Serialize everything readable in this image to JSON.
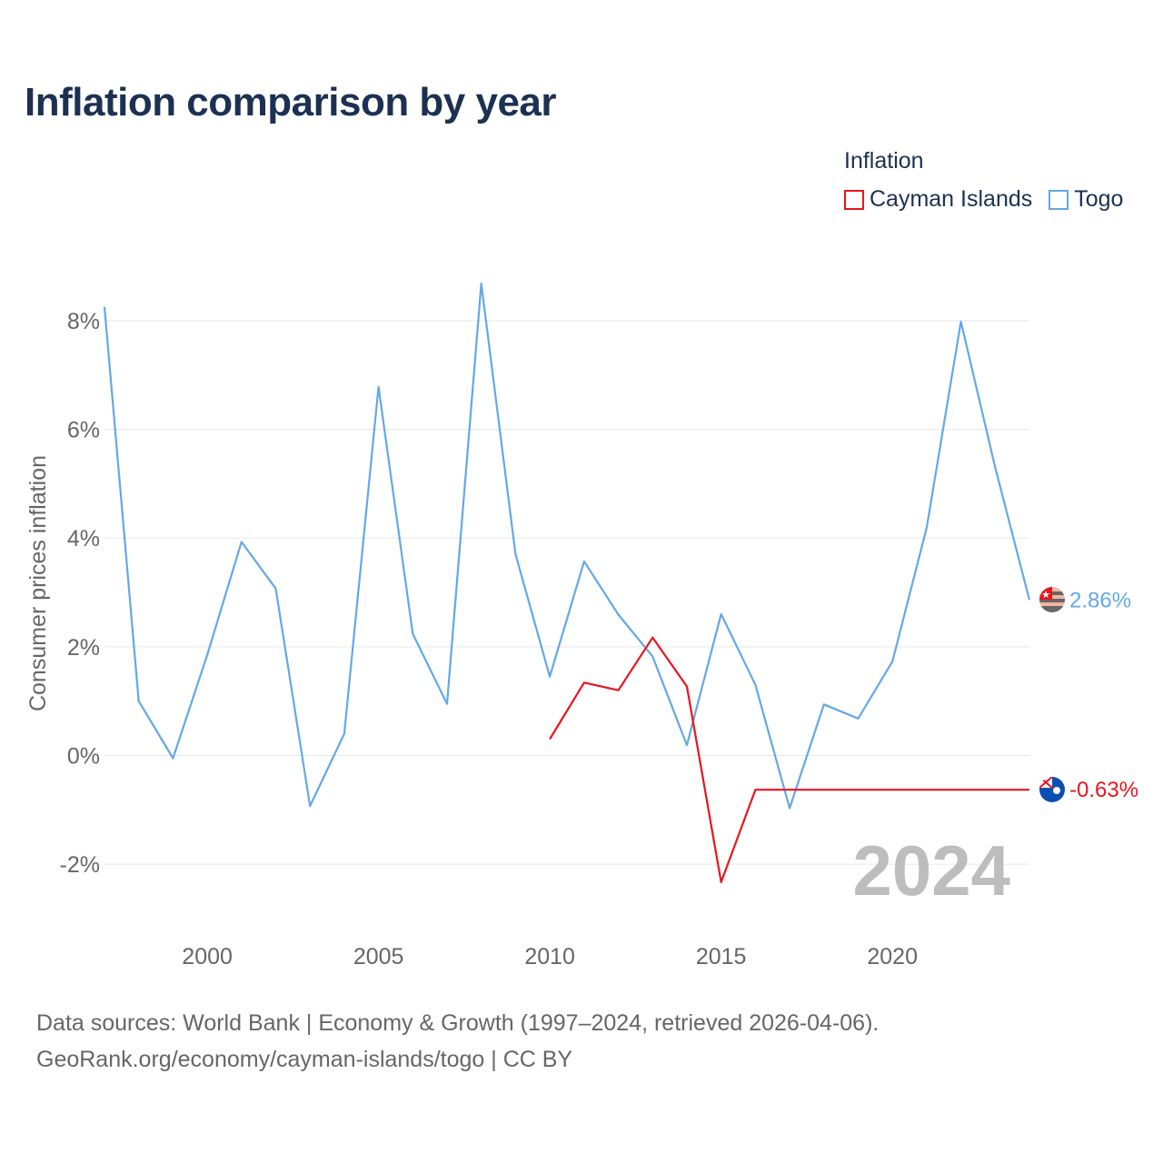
{
  "title": "Inflation comparison by year",
  "legend": {
    "title": "Inflation",
    "items": [
      {
        "label": "Cayman Islands",
        "color": "#e8141e"
      },
      {
        "label": "Togo",
        "color": "#64a8e6"
      }
    ]
  },
  "chart_data": {
    "type": "line",
    "title": "Inflation comparison by year",
    "xlabel": "",
    "ylabel": "Consumer prices inflation",
    "xlim": [
      1997,
      2024
    ],
    "ylim": [
      -3,
      9
    ],
    "x_ticks": [
      2000,
      2005,
      2010,
      2015,
      2020
    ],
    "y_ticks": [
      {
        "value": -2,
        "label": "-2%"
      },
      {
        "value": 0,
        "label": "0%"
      },
      {
        "value": 2,
        "label": "2%"
      },
      {
        "value": 4,
        "label": "4%"
      },
      {
        "value": 6,
        "label": "6%"
      },
      {
        "value": 8,
        "label": "8%"
      }
    ],
    "grid": true,
    "year_watermark": "2024",
    "series": [
      {
        "name": "Togo",
        "color": "#64a8e6",
        "end_label": "2.86%",
        "x": [
          1997,
          1998,
          1999,
          2000,
          2001,
          2002,
          2003,
          2004,
          2005,
          2006,
          2007,
          2008,
          2009,
          2010,
          2011,
          2012,
          2013,
          2014,
          2015,
          2016,
          2017,
          2018,
          2019,
          2020,
          2021,
          2022,
          2023,
          2024
        ],
        "values": [
          8.25,
          1.0,
          -0.05,
          1.85,
          3.93,
          3.07,
          -0.93,
          0.4,
          6.78,
          2.24,
          0.95,
          8.68,
          3.7,
          1.45,
          3.57,
          2.59,
          1.82,
          0.19,
          2.6,
          1.3,
          -0.97,
          0.94,
          0.68,
          1.73,
          4.19,
          7.98,
          5.3,
          2.86
        ]
      },
      {
        "name": "Cayman Islands",
        "color": "#e8141e",
        "end_label": "-0.63%",
        "x": [
          2010,
          2011,
          2012,
          2013,
          2014,
          2015,
          2016,
          2017,
          2018,
          2019,
          2020,
          2021,
          2022,
          2023,
          2024
        ],
        "values": [
          0.3,
          1.34,
          1.2,
          2.17,
          1.27,
          -2.33,
          -0.63,
          -0.63,
          -0.63,
          -0.63,
          -0.63,
          -0.63,
          -0.63,
          -0.63,
          -0.63
        ]
      }
    ]
  },
  "source": {
    "line1": "Data sources: World Bank | Economy & Growth (1997–2024, retrieved 2026-04-06).",
    "line2": "GeoRank.org/economy/cayman-islands/togo | CC BY"
  }
}
